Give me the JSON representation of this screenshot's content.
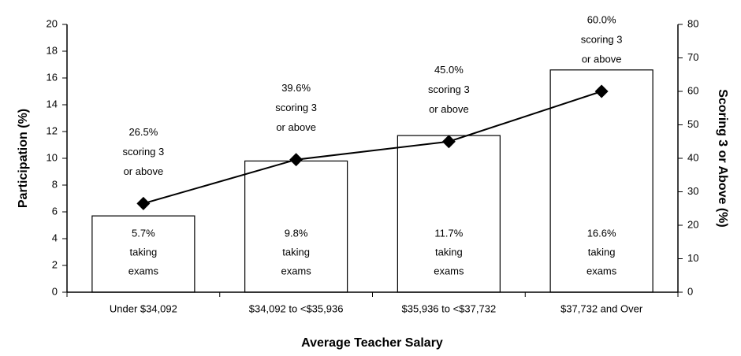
{
  "chart_data": {
    "type": "bar_line",
    "xlabel": "Average Teacher Salary",
    "ylabel": "Participation (%)",
    "y2label": "Scoring 3 or Above (%)",
    "categories": [
      "Under $34,092",
      "$34,092 to <$35,936",
      "$35,936 to <$37,732",
      "$37,732 and Over"
    ],
    "series": [
      {
        "name": "Participation",
        "type": "bar",
        "color": "#ffffff",
        "values": [
          5.7,
          9.8,
          11.7,
          16.6
        ],
        "value_labels": [
          [
            "5.7%",
            "taking",
            "exams"
          ],
          [
            "9.8%",
            "taking",
            "exams"
          ],
          [
            "11.7%",
            "taking",
            "exams"
          ],
          [
            "16.6%",
            "taking",
            "exams"
          ]
        ]
      },
      {
        "name": "Scoring 3 or Above",
        "type": "line",
        "axis": "y2",
        "color": "#000000",
        "values": [
          26.5,
          39.6,
          45.0,
          60.0
        ],
        "value_labels": [
          [
            "26.5%",
            "scoring 3",
            "or above"
          ],
          [
            "39.6%",
            "scoring 3",
            "or above"
          ],
          [
            "45.0%",
            "scoring 3",
            "or above"
          ],
          [
            "60.0%",
            "scoring 3",
            "or above"
          ]
        ]
      }
    ],
    "ylim": [
      0,
      20
    ],
    "yticks": [
      0,
      2,
      4,
      6,
      8,
      10,
      12,
      14,
      16,
      18,
      20
    ],
    "y2lim": [
      0,
      80
    ],
    "y2ticks": [
      0,
      10,
      20,
      30,
      40,
      50,
      60,
      70,
      80
    ]
  }
}
